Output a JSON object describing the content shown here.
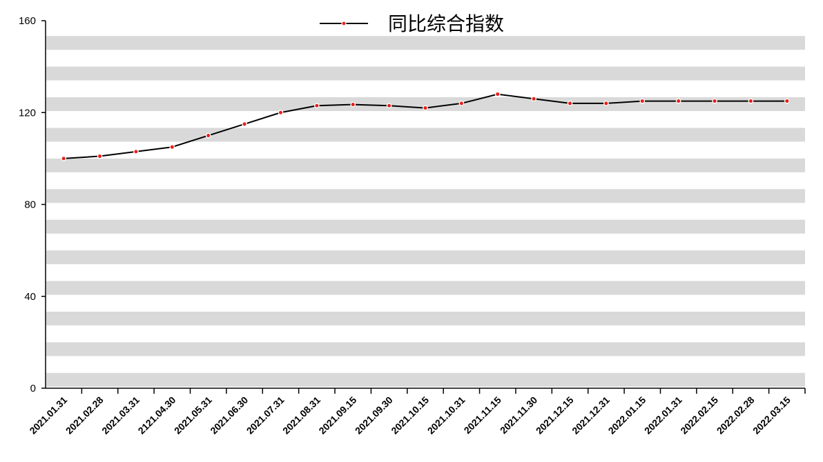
{
  "chart_data": {
    "type": "line",
    "categories": [
      "2021.01.31",
      "2021.02.28",
      "2021.03.31",
      "2121.04.30",
      "2021.05.31",
      "2021.06.30",
      "2021.07.31",
      "2021.08.31",
      "2021.09.15",
      "2021.09.30",
      "2021.10.15",
      "2021.10.31",
      "2021.11.15",
      "2021.11.30",
      "2021.12.15",
      "2021.12.31",
      "2022.01.15",
      "2022.01.31",
      "2022.02.15",
      "2022.02.28",
      "2022.03.15"
    ],
    "series": [
      {
        "name": "同比综合指数",
        "values": [
          100,
          101,
          103,
          105,
          110,
          115,
          120,
          123,
          123.5,
          123,
          122,
          124,
          128,
          126,
          124,
          124,
          125,
          125,
          125,
          125,
          125
        ]
      }
    ],
    "ylim": [
      0,
      160
    ],
    "yticks": [
      "0",
      "40",
      "80",
      "120",
      "160"
    ],
    "grid": "alternating horizontal bands",
    "legend_position": "top-center",
    "colors": {
      "line": "#000000",
      "marker": "#e8211c",
      "band": "#d9d9d9"
    }
  }
}
